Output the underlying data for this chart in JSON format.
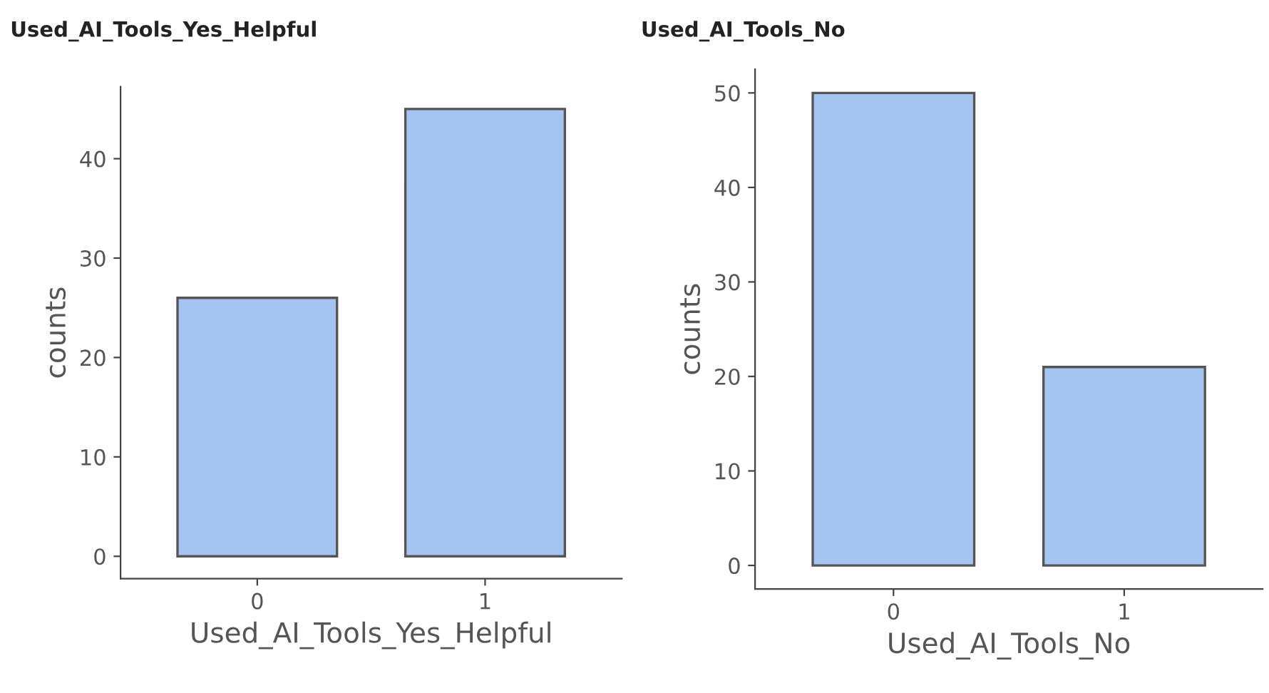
{
  "chart_data": [
    {
      "type": "bar",
      "title": "Used_AI_Tools_Yes_Helpful",
      "xlabel": "Used_AI_Tools_Yes_Helpful",
      "ylabel": "counts",
      "categories": [
        "0",
        "1"
      ],
      "values": [
        26,
        45
      ],
      "color": "#a6c4f0",
      "ylim": [
        -2.25,
        47.25
      ],
      "yticks": [
        0,
        10,
        20,
        30,
        40
      ],
      "grid": false
    },
    {
      "type": "bar",
      "title": "Used_AI_Tools_No",
      "xlabel": "Used_AI_Tools_No",
      "ylabel": "counts",
      "categories": [
        "0",
        "1"
      ],
      "values": [
        50,
        21
      ],
      "color": "#a6c4f0",
      "ylim": [
        -2.5,
        52.5
      ],
      "yticks": [
        0,
        10,
        20,
        30,
        40,
        50
      ],
      "grid": false
    }
  ]
}
